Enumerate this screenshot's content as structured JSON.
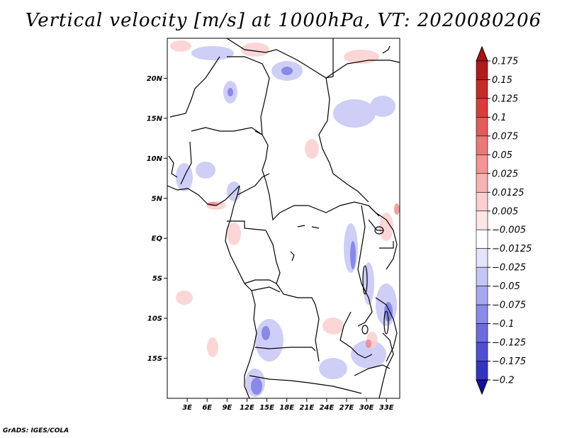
{
  "title": "Vertical velocity [m/s] at 1000hPa, VT: 2020080206",
  "credit": "GrADS: IGES/COLA",
  "map": {
    "lon_range": [
      0,
      35
    ],
    "lat_range": [
      -20,
      25
    ],
    "lat_ticks": [
      {
        "value": 20,
        "label": "20N"
      },
      {
        "value": 15,
        "label": "15N"
      },
      {
        "value": 10,
        "label": "10N"
      },
      {
        "value": 5,
        "label": "5N"
      },
      {
        "value": 0,
        "label": "EQ"
      },
      {
        "value": -5,
        "label": "5S"
      },
      {
        "value": -10,
        "label": "10S"
      },
      {
        "value": -15,
        "label": "15S"
      }
    ],
    "lon_ticks": [
      {
        "value": 3,
        "label": "3E"
      },
      {
        "value": 6,
        "label": "6E"
      },
      {
        "value": 9,
        "label": "9E"
      },
      {
        "value": 12,
        "label": "12E"
      },
      {
        "value": 15,
        "label": "15E"
      },
      {
        "value": 18,
        "label": "18E"
      },
      {
        "value": 21,
        "label": "21E"
      },
      {
        "value": 24,
        "label": "24E"
      },
      {
        "value": 27,
        "label": "27E"
      },
      {
        "value": 30,
        "label": "30E"
      },
      {
        "value": 33,
        "label": "33E"
      }
    ]
  },
  "colorbar": {
    "levels": [
      {
        "label": "0.175",
        "color": "#b3191c"
      },
      {
        "label": "0.15",
        "color": "#c82a2a"
      },
      {
        "label": "0.125",
        "color": "#dd3c3c"
      },
      {
        "label": "0.1",
        "color": "#e55a5a"
      },
      {
        "label": "0.075",
        "color": "#ec7878"
      },
      {
        "label": "0.05",
        "color": "#f29595"
      },
      {
        "label": "0.025",
        "color": "#f7b3b3"
      },
      {
        "label": "0.0125",
        "color": "#fbcfcf"
      },
      {
        "label": "0.005",
        "color": "#fde6e6"
      },
      {
        "label": "−0.005",
        "color": "#ffffff"
      },
      {
        "label": "−0.0125",
        "color": "#e3e3fb"
      },
      {
        "label": "−0.025",
        "color": "#c6c6f6"
      },
      {
        "label": "−0.05",
        "color": "#a8a8f0"
      },
      {
        "label": "−0.075",
        "color": "#8a8ae9"
      },
      {
        "label": "−0.1",
        "color": "#6c6ce0"
      },
      {
        "label": "−0.125",
        "color": "#4f4fd4"
      },
      {
        "label": "−0.175",
        "color": "#3434c4"
      },
      {
        "label": "−0.2",
        "color": "#1f1fa8"
      }
    ],
    "top_color": "#a51717",
    "bottom_color": "#1a0e9c"
  }
}
